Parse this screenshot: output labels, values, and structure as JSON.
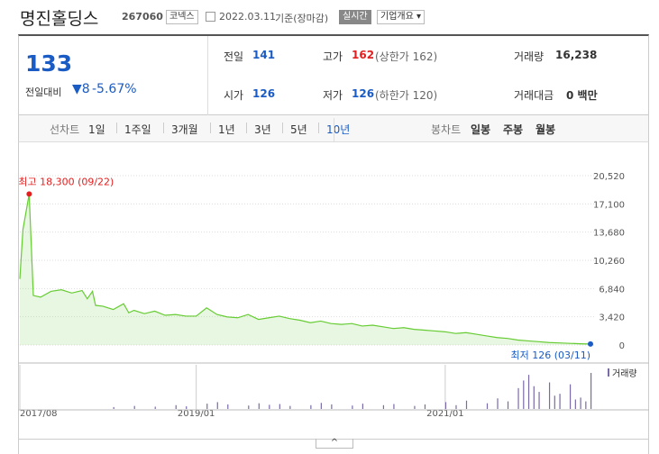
{
  "header": {
    "name": "명진홀딩스",
    "code": "267060",
    "market": "코넥스",
    "date": "2022.03.11",
    "basis": "기준(장마감)",
    "realtime": "실시간",
    "company_info": "기업개요"
  },
  "quote": {
    "price": "133",
    "change_label": "전일대비",
    "change": "8",
    "rate": "-5.67%"
  },
  "summary": [
    [
      {
        "label": "전일",
        "value": "141"
      },
      {
        "label": "고가",
        "value": "162",
        "note": "(상한가 162)"
      },
      {
        "label": "거래량",
        "value": "16,238"
      }
    ],
    [
      {
        "label": "시가",
        "value": "126"
      },
      {
        "label": "저가",
        "value": "126",
        "note": "(하한가 120)"
      },
      {
        "label": "거래대금",
        "value": "0 백만"
      }
    ]
  ],
  "tabs": {
    "line_label": "선차트",
    "line": [
      "1일",
      "1주일",
      "3개월",
      "1년",
      "3년",
      "5년",
      "10년"
    ],
    "candle_label": "봉차트",
    "candle": [
      "일봉",
      "주봉",
      "월봉"
    ]
  },
  "chart": {
    "type": "line",
    "color": "#66cc33",
    "x": [
      0,
      0.3,
      0.9,
      1.3,
      2,
      3,
      4,
      5,
      6,
      6.5,
      7,
      7.3,
      8,
      9,
      10,
      10.5,
      11,
      12,
      13,
      14,
      15,
      16,
      17,
      18,
      19,
      20,
      21,
      22,
      23,
      24,
      25,
      26,
      27,
      28,
      29,
      30,
      31,
      32,
      33,
      34,
      35,
      36,
      37,
      38,
      39,
      40,
      41,
      42,
      43,
      44,
      45,
      46,
      47,
      48,
      49,
      50,
      51,
      52,
      53,
      54,
      55
    ],
    "values": [
      8000,
      14000,
      18300,
      6000,
      5800,
      6500,
      6700,
      6300,
      6600,
      5600,
      6500,
      4800,
      4700,
      4300,
      5000,
      3900,
      4200,
      3800,
      4100,
      3600,
      3700,
      3500,
      3500,
      4500,
      3700,
      3400,
      3300,
      3700,
      3100,
      3300,
      3500,
      3200,
      3000,
      2700,
      2900,
      2600,
      2500,
      2600,
      2300,
      2400,
      2200,
      2000,
      2100,
      1900,
      1800,
      1700,
      1600,
      1400,
      1500,
      1300,
      1100,
      900,
      800,
      600,
      500,
      400,
      300,
      250,
      200,
      150,
      126
    ],
    "xlim": [
      0,
      55
    ],
    "ylim": [
      0,
      20520
    ],
    "yticks": [
      {
        "value": 0,
        "label": "0"
      },
      {
        "value": 3420,
        "label": "3,420"
      },
      {
        "value": 6840,
        "label": "6,840"
      },
      {
        "value": 10260,
        "label": "10,260"
      },
      {
        "value": 13680,
        "label": "13,680"
      },
      {
        "value": 17100,
        "label": "17,100"
      },
      {
        "value": 20520,
        "label": "20,520"
      }
    ],
    "xticks": [
      {
        "value": 0,
        "label": "2017/08"
      },
      {
        "value": 17,
        "label": "2019/01"
      },
      {
        "value": 41,
        "label": "2021/01"
      }
    ],
    "high_label": "최고 18,300 (09/22)",
    "low_label": "최저 126 (03/11)",
    "volume": {
      "name": "거래량",
      "color": "#7a6aa8",
      "x": [
        9,
        11,
        13,
        15,
        16,
        18,
        19,
        20,
        22,
        23,
        24,
        25,
        26,
        28,
        29,
        30,
        32,
        33,
        35,
        36,
        38,
        39,
        41,
        42,
        43,
        45,
        46,
        47,
        48,
        48.5,
        49,
        49.5,
        50,
        51,
        51.5,
        52,
        53,
        53.5,
        54,
        54.5,
        55
      ],
      "values": [
        5,
        8,
        6,
        10,
        7,
        14,
        18,
        12,
        9,
        15,
        11,
        13,
        8,
        10,
        16,
        12,
        9,
        14,
        10,
        13,
        8,
        12,
        18,
        10,
        22,
        15,
        28,
        20,
        55,
        75,
        90,
        60,
        45,
        70,
        35,
        40,
        65,
        25,
        30,
        20,
        95
      ]
    }
  }
}
